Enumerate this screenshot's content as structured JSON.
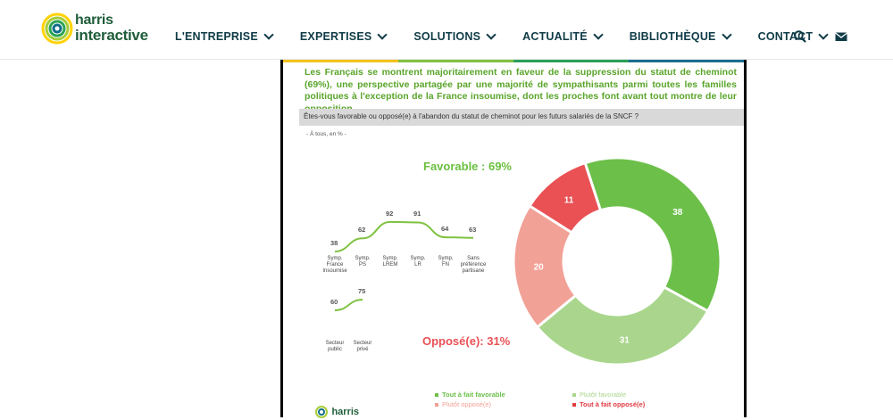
{
  "brand": {
    "line1": "harris",
    "line2": "interactive",
    "ring_colors": [
      "#ffd200",
      "#a5cd39",
      "#2aa454",
      "#116d8a"
    ]
  },
  "nav": {
    "items": [
      {
        "label": "L'ENTREPRISE"
      },
      {
        "label": "EXPERTISES"
      },
      {
        "label": "SOLUTIONS"
      },
      {
        "label": "ACTUALITÉ"
      },
      {
        "label": "BIBLIOTHÈQUE"
      },
      {
        "label": "CONTACT"
      }
    ],
    "search_icon": "search-icon",
    "mail_icon": "mail-icon"
  },
  "slide": {
    "headline": "Les Français se montrent majoritairement en faveur de la suppression du statut de cheminot (69%), une perspective partagée par une majorité de sympathisants parmi toutes les familles politiques à l'exception de la France insoumise, dont les proches font avant tout montre de leur opposition",
    "question": "Êtes-vous favorable ou opposé(e) à l'abandon du statut de cheminot pour les futurs salariés de la SNCF ?",
    "base": "- À tous, en % -",
    "favorable_label": "Favorable : 69%",
    "oppose_label": "Opposé(e): 31%",
    "footer_logo": "harris"
  },
  "chart_data": [
    {
      "type": "line",
      "categories": [
        "Symp. France Insoumise",
        "Symp. PS",
        "Symp. LREM",
        "Symp. LR",
        "Symp. FN",
        "Sans préférence partisane"
      ],
      "category_lines": [
        [
          "Symp.",
          "France",
          "Insoumise"
        ],
        [
          "Symp.",
          "PS"
        ],
        [
          "Symp.",
          "LREM"
        ],
        [
          "Symp.",
          "LR"
        ],
        [
          "Symp.",
          "FN"
        ],
        [
          "Sans",
          "préférence",
          "partisane"
        ]
      ],
      "values": [
        38,
        62,
        92,
        91,
        64,
        63
      ],
      "ylim": [
        0,
        100
      ],
      "color": "#7fc241"
    },
    {
      "type": "line",
      "categories": [
        "Secteur public",
        "Secteur privé"
      ],
      "category_lines": [
        [
          "Secteur",
          "public"
        ],
        [
          "Secteur",
          "privé"
        ]
      ],
      "values": [
        60,
        75
      ],
      "ylim": [
        0,
        100
      ],
      "color": "#7fc241"
    },
    {
      "type": "pie",
      "categories": [
        "Tout à fait favorable",
        "Plutôt favorable",
        "Plutôt opposé(e)",
        "Tout à fait opposé(e)"
      ],
      "values": [
        38,
        31,
        20,
        11
      ],
      "colors": [
        "#6cc04a",
        "#a9d68c",
        "#f2a196",
        "#e95155"
      ],
      "legend_colors": [
        "#6cc04a",
        "#a9d68c",
        "#f2a196",
        "#e03c44"
      ]
    }
  ]
}
